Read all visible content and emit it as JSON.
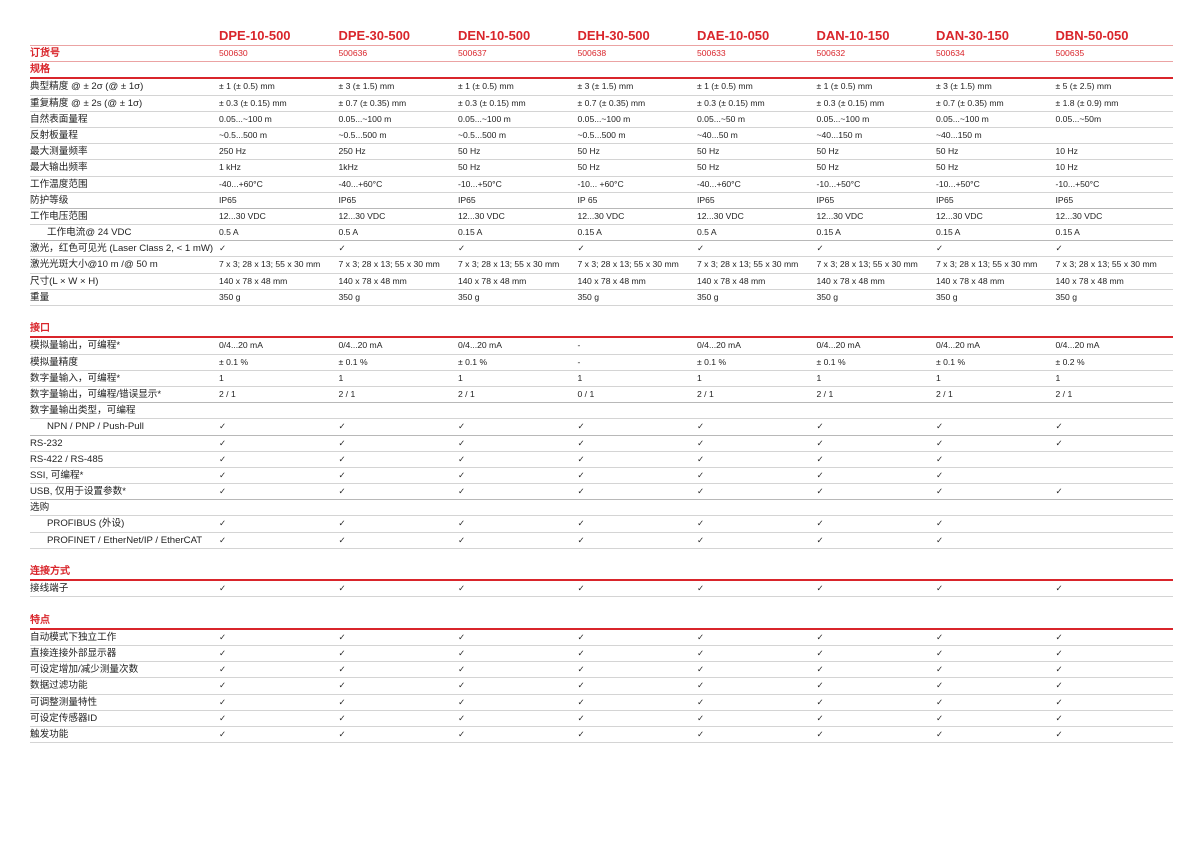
{
  "colors": {
    "accent": "#d9252b"
  },
  "models": [
    "DPE-10-500",
    "DPE-30-500",
    "DEN-10-500",
    "DEH-30-500",
    "DAE-10-050",
    "DAN-10-150",
    "DAN-30-150",
    "DBN-50-050"
  ],
  "rows": [
    {
      "type": "order",
      "label": "订货号",
      "values": [
        "500630",
        "500636",
        "500637",
        "500638",
        "500633",
        "500632",
        "500634",
        "500635"
      ]
    },
    {
      "type": "sec",
      "label": "规格"
    },
    {
      "label": "典型精度 @ ± 2σ (@ ± 1σ)",
      "values": [
        "± 1 (± 0.5) mm",
        "± 3 (± 1.5) mm",
        "± 1 (± 0.5) mm",
        "± 3 (± 1.5) mm",
        "± 1 (± 0.5) mm",
        "± 1 (± 0.5) mm",
        "± 3 (± 1.5) mm",
        "± 5 (± 2.5) mm"
      ]
    },
    {
      "label": "重复精度 @ ± 2s (@ ± 1σ)",
      "values": [
        "± 0.3 (± 0.15) mm",
        "± 0.7 (± 0.35) mm",
        "± 0.3 (± 0.15) mm",
        "± 0.7 (± 0.35) mm",
        "± 0.3 (± 0.15) mm",
        "± 0.3 (± 0.15) mm",
        "± 0.7 (± 0.35) mm",
        "± 1.8 (± 0.9) mm"
      ]
    },
    {
      "label": "自然表面量程",
      "values": [
        "0.05...~100 m",
        "0.05...~100 m",
        "0.05...~100 m",
        "0.05...~100 m",
        "0.05...~50 m",
        "0.05...~100 m",
        "0.05...~100 m",
        "0.05...~50m"
      ]
    },
    {
      "label": "反射板量程",
      "values": [
        " ~0.5...500 m",
        " ~0.5...500 m",
        " ~0.5...500 m",
        " ~0.5...500 m",
        "~40...50 m",
        "~40...150 m",
        "~40...150 m",
        ""
      ]
    },
    {
      "label": "最大测量频率",
      "values": [
        "250 Hz",
        "250 Hz",
        "50 Hz",
        "50 Hz",
        "50 Hz",
        "50 Hz",
        "50 Hz",
        "10 Hz"
      ]
    },
    {
      "label": "最大输出频率",
      "values": [
        "1 kHz",
        "1kHz",
        "50 Hz",
        "50 Hz",
        "50 Hz",
        "50 Hz",
        "50 Hz",
        "10 Hz"
      ]
    },
    {
      "label": "工作温度范围",
      "values": [
        "-40...+60°C",
        "-40...+60°C",
        "-10...+50°C",
        "-10... +60°C",
        "-40...+60°C",
        "-10...+50°C",
        "-10...+50°C",
        "-10...+50°C"
      ]
    },
    {
      "label": "防护等级",
      "thick": true,
      "values": [
        "IP65",
        "IP65",
        "IP65",
        "IP 65",
        "IP65",
        "IP65",
        "IP65",
        "IP65"
      ]
    },
    {
      "label": "工作电压范围",
      "values": [
        "12...30 VDC",
        "12...30 VDC",
        "12...30 VDC",
        "12...30 VDC",
        "12...30 VDC",
        "12...30 VDC",
        "12...30 VDC",
        "12...30 VDC"
      ]
    },
    {
      "label": "工作电流@ 24 VDC",
      "indent": true,
      "thick": true,
      "values": [
        "0.5 A",
        "0.5 A",
        "0.15 A",
        "0.15 A",
        "0.5 A",
        "0.15 A",
        "0.15 A",
        "0.15 A"
      ]
    },
    {
      "label": "激光，红色可见光 (Laser Class 2, < 1 mW)",
      "values": [
        "✓",
        "✓",
        "✓",
        "✓",
        "✓",
        "✓",
        "✓",
        "✓"
      ]
    },
    {
      "label": "激光光斑大小@10 m /@ 50 m",
      "values": [
        "7 x 3; 28 x 13; 55 x 30 mm",
        "7 x 3; 28 x 13; 55 x 30 mm",
        "7 x 3; 28 x 13; 55 x 30 mm",
        "7 x 3; 28 x 13; 55 x 30 mm",
        "7 x 3; 28 x 13; 55 x 30 mm",
        "7 x 3; 28 x 13; 55 x 30 mm",
        "7 x 3; 28 x 13; 55 x 30 mm",
        "7 x 3; 28 x 13; 55 x 30 mm"
      ]
    },
    {
      "label": "尺寸(L × W × H)",
      "values": [
        "140 x 78 x 48 mm",
        "140 x 78 x 48 mm",
        "140 x 78 x 48 mm",
        "140 x 78 x 48 mm",
        "140 x 78 x 48 mm",
        "140 x 78 x 48 mm",
        "140 x 78 x 48 mm",
        "140 x 78 x 48 mm"
      ]
    },
    {
      "label": "重量",
      "values": [
        "350 g",
        "350 g",
        "350 g",
        "350 g",
        "350 g",
        "350 g",
        "350 g",
        "350 g"
      ]
    },
    {
      "type": "blank"
    },
    {
      "type": "sec",
      "label": "接口"
    },
    {
      "label": "模拟量输出，可编程*",
      "values": [
        "0/4...20 mA",
        "0/4...20 mA",
        "0/4...20 mA",
        "-",
        "0/4...20 mA",
        "0/4...20 mA",
        "0/4...20 mA",
        "0/4...20 mA"
      ]
    },
    {
      "label": "模拟量精度",
      "values": [
        "± 0.1 %",
        "± 0.1 %",
        "± 0.1 %",
        "-",
        "± 0.1 %",
        "± 0.1 %",
        "± 0.1 %",
        "± 0.2 %"
      ]
    },
    {
      "label": "数字量输入，可编程*",
      "values": [
        "1",
        "1",
        "1",
        "1",
        "1",
        "1",
        "1",
        "1"
      ]
    },
    {
      "label": "数字量输出，可编程/错误显示*",
      "thick": true,
      "values": [
        "2 / 1",
        "2 / 1",
        "2 / 1",
        "0 / 1",
        "2 / 1",
        "2 / 1",
        "2 / 1",
        "2 / 1"
      ]
    },
    {
      "label": "数字量输出类型，可编程"
    },
    {
      "label": "NPN / PNP / Push-Pull",
      "indent": true,
      "thick": true,
      "values": [
        "✓",
        "✓",
        "✓",
        "✓",
        "✓",
        "✓",
        "✓",
        "✓"
      ]
    },
    {
      "label": "RS-232",
      "values": [
        "✓",
        "✓",
        "✓",
        "✓",
        "✓",
        "✓",
        "✓",
        "✓"
      ]
    },
    {
      "label": "RS-422 / RS-485",
      "values": [
        "✓",
        "✓",
        "✓",
        "✓",
        "✓",
        "✓",
        "✓",
        ""
      ]
    },
    {
      "label": "SSI, 可编程*",
      "values": [
        "✓",
        "✓",
        "✓",
        "✓",
        "✓",
        "✓",
        "✓",
        ""
      ]
    },
    {
      "label": "USB, 仅用于设置参数*",
      "thick": true,
      "values": [
        "✓",
        "✓",
        "✓",
        "✓",
        "✓",
        "✓",
        "✓",
        "✓"
      ]
    },
    {
      "label": "选购"
    },
    {
      "label": "PROFIBUS (外设)",
      "indent": true,
      "values": [
        "✓",
        "✓",
        "✓",
        "✓",
        "✓",
        "✓",
        "✓",
        ""
      ]
    },
    {
      "label": "PROFINET / EtherNet/IP / EtherCAT",
      "indent": true,
      "values": [
        "✓",
        "✓",
        "✓",
        "✓",
        "✓",
        "✓",
        "✓",
        ""
      ]
    },
    {
      "type": "blank"
    },
    {
      "type": "sec",
      "label": "连接方式"
    },
    {
      "label": "接线端子",
      "values": [
        "✓",
        "✓",
        "✓",
        "✓",
        "✓",
        "✓",
        "✓",
        "✓"
      ]
    },
    {
      "type": "blank"
    },
    {
      "type": "sec",
      "label": "特点"
    },
    {
      "label": "自动模式下独立工作",
      "values": [
        "✓",
        "✓",
        "✓",
        "✓",
        "✓",
        "✓",
        "✓",
        "✓"
      ]
    },
    {
      "label": "直接连接外部显示器",
      "values": [
        "✓",
        "✓",
        "✓",
        "✓",
        "✓",
        "✓",
        "✓",
        "✓"
      ]
    },
    {
      "label": "可设定增加/减少测量次数",
      "values": [
        "✓",
        "✓",
        "✓",
        "✓",
        "✓",
        "✓",
        "✓",
        "✓"
      ]
    },
    {
      "label": "数据过滤功能",
      "values": [
        "✓",
        "✓",
        "✓",
        "✓",
        "✓",
        "✓",
        "✓",
        "✓"
      ]
    },
    {
      "label": "可调整测量特性",
      "values": [
        "✓",
        "✓",
        "✓",
        "✓",
        "✓",
        "✓",
        "✓",
        "✓"
      ]
    },
    {
      "label": "可设定传感器ID",
      "values": [
        "✓",
        "✓",
        "✓",
        "✓",
        "✓",
        "✓",
        "✓",
        "✓"
      ]
    },
    {
      "label": "触发功能",
      "values": [
        "✓",
        "✓",
        "✓",
        "✓",
        "✓",
        "✓",
        "✓",
        "✓"
      ]
    }
  ]
}
